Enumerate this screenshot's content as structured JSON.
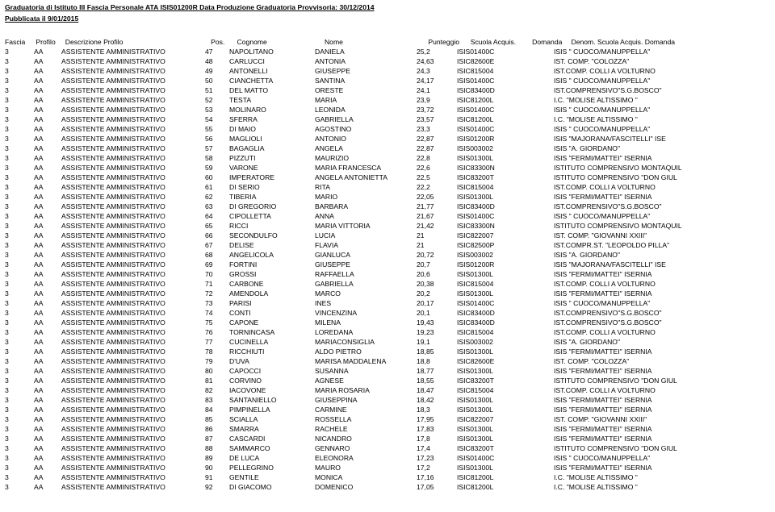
{
  "title": "Graduatoria di Istituto III Fascia Personale ATA ISIS01200R Data Produzione Graduatoria Provvisoria: 30/12/2014",
  "subtitle": "Pubblicata il 9/01/2015",
  "columns": {
    "fascia": "Fascia",
    "profilo": "Profilo",
    "descrizione": "Descrizione Profilo",
    "pos": "Pos.",
    "cognome": "Cognome",
    "nome": "Nome",
    "punteggio": "Punteggio",
    "scuola": "Scuola Acquis.",
    "domanda": "Domanda",
    "denom": "Denom. Scuola Acquis. Domanda"
  },
  "rows": [
    {
      "fascia": "3",
      "profilo": "AA",
      "desc": "ASSISTENTE AMMINISTRATIVO",
      "pos": "47",
      "cognome": "NAPOLITANO",
      "nome": "DANIELA",
      "punt": "25,2",
      "scuola": "ISIS01400C",
      "denom": "ISIS \" CUOCO/MANUPPELLA\""
    },
    {
      "fascia": "3",
      "profilo": "AA",
      "desc": "ASSISTENTE AMMINISTRATIVO",
      "pos": "48",
      "cognome": "CARLUCCI",
      "nome": "ANTONIA",
      "punt": "24,63",
      "scuola": "ISIC82600E",
      "denom": "IST. COMP. \"COLOZZA\""
    },
    {
      "fascia": "3",
      "profilo": "AA",
      "desc": "ASSISTENTE AMMINISTRATIVO",
      "pos": "49",
      "cognome": "ANTONELLI",
      "nome": "GIUSEPPE",
      "punt": "24,3",
      "scuola": "ISIC815004",
      "denom": "IST.COMP. COLLI A VOLTURNO"
    },
    {
      "fascia": "3",
      "profilo": "AA",
      "desc": "ASSISTENTE AMMINISTRATIVO",
      "pos": "50",
      "cognome": "CIANCHETTA",
      "nome": "SANTINA",
      "punt": "24,17",
      "scuola": "ISIS01400C",
      "denom": "ISIS \" CUOCO/MANUPPELLA\""
    },
    {
      "fascia": "3",
      "profilo": "AA",
      "desc": "ASSISTENTE AMMINISTRATIVO",
      "pos": "51",
      "cognome": "DEL MATTO",
      "nome": "ORESTE",
      "punt": "24,1",
      "scuola": "ISIC83400D",
      "denom": "IST.COMPRENSIVO\"S.G.BOSCO\""
    },
    {
      "fascia": "3",
      "profilo": "AA",
      "desc": "ASSISTENTE AMMINISTRATIVO",
      "pos": "52",
      "cognome": "TESTA",
      "nome": "MARIA",
      "punt": "23,9",
      "scuola": "ISIC81200L",
      "denom": "I.C. \"MOLISE ALTISSIMO \""
    },
    {
      "fascia": "3",
      "profilo": "AA",
      "desc": "ASSISTENTE AMMINISTRATIVO",
      "pos": "53",
      "cognome": "MOLINARO",
      "nome": "LEONIDA",
      "punt": "23,72",
      "scuola": "ISIS01400C",
      "denom": "ISIS \" CUOCO/MANUPPELLA\""
    },
    {
      "fascia": "3",
      "profilo": "AA",
      "desc": "ASSISTENTE AMMINISTRATIVO",
      "pos": "54",
      "cognome": "SFERRA",
      "nome": "GABRIELLA",
      "punt": "23,57",
      "scuola": "ISIC81200L",
      "denom": "I.C. \"MOLISE ALTISSIMO \""
    },
    {
      "fascia": "3",
      "profilo": "AA",
      "desc": "ASSISTENTE AMMINISTRATIVO",
      "pos": "55",
      "cognome": "DI MAIO",
      "nome": "AGOSTINO",
      "punt": "23,3",
      "scuola": "ISIS01400C",
      "denom": "ISIS \" CUOCO/MANUPPELLA\""
    },
    {
      "fascia": "3",
      "profilo": "AA",
      "desc": "ASSISTENTE AMMINISTRATIVO",
      "pos": "56",
      "cognome": "MAGLIOLI",
      "nome": "ANTONIO",
      "punt": "22,87",
      "scuola": "ISIS01200R",
      "denom": "ISIS \"MAJORANA/FASCITELLI\" ISE"
    },
    {
      "fascia": "3",
      "profilo": "AA",
      "desc": "ASSISTENTE AMMINISTRATIVO",
      "pos": "57",
      "cognome": "BAGAGLIA",
      "nome": "ANGELA",
      "punt": "22,87",
      "scuola": "ISIS003002",
      "denom": "ISIS  \"A. GIORDANO\""
    },
    {
      "fascia": "3",
      "profilo": "AA",
      "desc": "ASSISTENTE AMMINISTRATIVO",
      "pos": "58",
      "cognome": "PIZZUTI",
      "nome": "MAURIZIO",
      "punt": "22,8",
      "scuola": "ISIS01300L",
      "denom": "ISIS \"FERMI/MATTEI\" ISERNIA"
    },
    {
      "fascia": "3",
      "profilo": "AA",
      "desc": "ASSISTENTE AMMINISTRATIVO",
      "pos": "59",
      "cognome": "VARONE",
      "nome": "MARIA FRANCESCA",
      "punt": "22,6",
      "scuola": "ISIC83300N",
      "denom": "ISTITUTO COMPRENSIVO MONTAQUIL"
    },
    {
      "fascia": "3",
      "profilo": "AA",
      "desc": "ASSISTENTE AMMINISTRATIVO",
      "pos": "60",
      "cognome": "IMPERATORE",
      "nome": "ANGELA ANTONIETTA",
      "punt": "22,5",
      "scuola": "ISIC83200T",
      "denom": "ISTITUTO COMPRENSIVO \"DON GIUL"
    },
    {
      "fascia": "3",
      "profilo": "AA",
      "desc": "ASSISTENTE AMMINISTRATIVO",
      "pos": "61",
      "cognome": "DI SERIO",
      "nome": "RITA",
      "punt": "22,2",
      "scuola": "ISIC815004",
      "denom": "IST.COMP. COLLI A VOLTURNO"
    },
    {
      "fascia": "3",
      "profilo": "AA",
      "desc": "ASSISTENTE AMMINISTRATIVO",
      "pos": "62",
      "cognome": "TIBERIA",
      "nome": "MARIO",
      "punt": "22,05",
      "scuola": "ISIS01300L",
      "denom": "ISIS \"FERMI/MATTEI\" ISERNIA"
    },
    {
      "fascia": "3",
      "profilo": "AA",
      "desc": "ASSISTENTE AMMINISTRATIVO",
      "pos": "63",
      "cognome": "DI GREGORIO",
      "nome": "BARBARA",
      "punt": "21,77",
      "scuola": "ISIC83400D",
      "denom": "IST.COMPRENSIVO\"S.G.BOSCO\""
    },
    {
      "fascia": "3",
      "profilo": "AA",
      "desc": "ASSISTENTE AMMINISTRATIVO",
      "pos": "64",
      "cognome": "CIPOLLETTA",
      "nome": "ANNA",
      "punt": "21,67",
      "scuola": "ISIS01400C",
      "denom": "ISIS \" CUOCO/MANUPPELLA\""
    },
    {
      "fascia": "3",
      "profilo": "AA",
      "desc": "ASSISTENTE AMMINISTRATIVO",
      "pos": "65",
      "cognome": "RICCI",
      "nome": "MARIA VITTORIA",
      "punt": "21,42",
      "scuola": "ISIC83300N",
      "denom": "ISTITUTO COMPRENSIVO MONTAQUIL"
    },
    {
      "fascia": "3",
      "profilo": "AA",
      "desc": "ASSISTENTE AMMINISTRATIVO",
      "pos": "66",
      "cognome": "SECONDULFO",
      "nome": "LUCIA",
      "punt": "21",
      "scuola": "ISIC822007",
      "denom": "IST. COMP. \"GIOVANNI XXIII\""
    },
    {
      "fascia": "3",
      "profilo": "AA",
      "desc": "ASSISTENTE AMMINISTRATIVO",
      "pos": "67",
      "cognome": "DELISE",
      "nome": "FLAVIA",
      "punt": "21",
      "scuola": "ISIC82500P",
      "denom": "IST.COMPR.ST. \"LEOPOLDO PILLA\""
    },
    {
      "fascia": "3",
      "profilo": "AA",
      "desc": "ASSISTENTE AMMINISTRATIVO",
      "pos": "68",
      "cognome": "ANGELICOLA",
      "nome": "GIANLUCA",
      "punt": "20,72",
      "scuola": "ISIS003002",
      "denom": "ISIS  \"A. GIORDANO\""
    },
    {
      "fascia": "3",
      "profilo": "AA",
      "desc": "ASSISTENTE AMMINISTRATIVO",
      "pos": "69",
      "cognome": "FORTINI",
      "nome": "GIUSEPPE",
      "punt": "20,7",
      "scuola": "ISIS01200R",
      "denom": "ISIS \"MAJORANA/FASCITELLI\" ISE"
    },
    {
      "fascia": "3",
      "profilo": "AA",
      "desc": "ASSISTENTE AMMINISTRATIVO",
      "pos": "70",
      "cognome": "GROSSI",
      "nome": "RAFFAELLA",
      "punt": "20,6",
      "scuola": "ISIS01300L",
      "denom": "ISIS \"FERMI/MATTEI\" ISERNIA"
    },
    {
      "fascia": "3",
      "profilo": "AA",
      "desc": "ASSISTENTE AMMINISTRATIVO",
      "pos": "71",
      "cognome": "CARBONE",
      "nome": "GABRIELLA",
      "punt": "20,38",
      "scuola": "ISIC815004",
      "denom": "IST.COMP. COLLI A VOLTURNO"
    },
    {
      "fascia": "3",
      "profilo": "AA",
      "desc": "ASSISTENTE AMMINISTRATIVO",
      "pos": "72",
      "cognome": "AMENDOLA",
      "nome": "MARCO",
      "punt": "20,2",
      "scuola": "ISIS01300L",
      "denom": "ISIS \"FERMI/MATTEI\" ISERNIA"
    },
    {
      "fascia": "3",
      "profilo": "AA",
      "desc": "ASSISTENTE AMMINISTRATIVO",
      "pos": "73",
      "cognome": "PARISI",
      "nome": "INES",
      "punt": "20,17",
      "scuola": "ISIS01400C",
      "denom": "ISIS \" CUOCO/MANUPPELLA\""
    },
    {
      "fascia": "3",
      "profilo": "AA",
      "desc": "ASSISTENTE AMMINISTRATIVO",
      "pos": "74",
      "cognome": "CONTI",
      "nome": "VINCENZINA",
      "punt": "20,1",
      "scuola": "ISIC83400D",
      "denom": "IST.COMPRENSIVO\"S.G.BOSCO\""
    },
    {
      "fascia": "3",
      "profilo": "AA",
      "desc": "ASSISTENTE AMMINISTRATIVO",
      "pos": "75",
      "cognome": "CAPONE",
      "nome": "MILENA",
      "punt": "19,43",
      "scuola": "ISIC83400D",
      "denom": "IST.COMPRENSIVO\"S.G.BOSCO\""
    },
    {
      "fascia": "3",
      "profilo": "AA",
      "desc": "ASSISTENTE AMMINISTRATIVO",
      "pos": "76",
      "cognome": "TORNINCASA",
      "nome": "LOREDANA",
      "punt": "19,23",
      "scuola": "ISIC815004",
      "denom": "IST.COMP. COLLI A VOLTURNO"
    },
    {
      "fascia": "3",
      "profilo": "AA",
      "desc": "ASSISTENTE AMMINISTRATIVO",
      "pos": "77",
      "cognome": "CUCINELLA",
      "nome": "MARIACONSIGLIA",
      "punt": "19,1",
      "scuola": "ISIS003002",
      "denom": "ISIS  \"A. GIORDANO\""
    },
    {
      "fascia": "3",
      "profilo": "AA",
      "desc": "ASSISTENTE AMMINISTRATIVO",
      "pos": "78",
      "cognome": "RICCHIUTI",
      "nome": "ALDO PIETRO",
      "punt": "18,85",
      "scuola": "ISIS01300L",
      "denom": "ISIS \"FERMI/MATTEI\" ISERNIA"
    },
    {
      "fascia": "3",
      "profilo": "AA",
      "desc": "ASSISTENTE AMMINISTRATIVO",
      "pos": "79",
      "cognome": "D'UVA",
      "nome": "MARISA MADDALENA",
      "punt": "18,8",
      "scuola": "ISIC82600E",
      "denom": "IST. COMP. \"COLOZZA\""
    },
    {
      "fascia": "3",
      "profilo": "AA",
      "desc": "ASSISTENTE AMMINISTRATIVO",
      "pos": "80",
      "cognome": "CAPOCCI",
      "nome": "SUSANNA",
      "punt": "18,77",
      "scuola": "ISIS01300L",
      "denom": "ISIS \"FERMI/MATTEI\" ISERNIA"
    },
    {
      "fascia": "3",
      "profilo": "AA",
      "desc": "ASSISTENTE AMMINISTRATIVO",
      "pos": "81",
      "cognome": "CORVINO",
      "nome": "AGNESE",
      "punt": "18,55",
      "scuola": "ISIC83200T",
      "denom": "ISTITUTO COMPRENSIVO \"DON GIUL"
    },
    {
      "fascia": "3",
      "profilo": "AA",
      "desc": "ASSISTENTE AMMINISTRATIVO",
      "pos": "82",
      "cognome": "IACOVONE",
      "nome": "MARIA ROSARIA",
      "punt": "18,47",
      "scuola": "ISIC815004",
      "denom": "IST.COMP. COLLI A VOLTURNO"
    },
    {
      "fascia": "3",
      "profilo": "AA",
      "desc": "ASSISTENTE AMMINISTRATIVO",
      "pos": "83",
      "cognome": "SANTANIELLO",
      "nome": "GIUSEPPINA",
      "punt": "18,42",
      "scuola": "ISIS01300L",
      "denom": "ISIS \"FERMI/MATTEI\" ISERNIA"
    },
    {
      "fascia": "3",
      "profilo": "AA",
      "desc": "ASSISTENTE AMMINISTRATIVO",
      "pos": "84",
      "cognome": "PIMPINELLA",
      "nome": "CARMINE",
      "punt": "18,3",
      "scuola": "ISIS01300L",
      "denom": "ISIS \"FERMI/MATTEI\" ISERNIA"
    },
    {
      "fascia": "3",
      "profilo": "AA",
      "desc": "ASSISTENTE AMMINISTRATIVO",
      "pos": "85",
      "cognome": "SCIALLA",
      "nome": "ROSSELLA",
      "punt": "17,95",
      "scuola": "ISIC822007",
      "denom": "IST. COMP. \"GIOVANNI XXIII\""
    },
    {
      "fascia": "3",
      "profilo": "AA",
      "desc": "ASSISTENTE AMMINISTRATIVO",
      "pos": "86",
      "cognome": "SMARRA",
      "nome": "RACHELE",
      "punt": "17,83",
      "scuola": "ISIS01300L",
      "denom": "ISIS \"FERMI/MATTEI\" ISERNIA"
    },
    {
      "fascia": "3",
      "profilo": "AA",
      "desc": "ASSISTENTE AMMINISTRATIVO",
      "pos": "87",
      "cognome": "CASCARDI",
      "nome": "NICANDRO",
      "punt": "17,8",
      "scuola": "ISIS01300L",
      "denom": "ISIS \"FERMI/MATTEI\" ISERNIA"
    },
    {
      "fascia": "3",
      "profilo": "AA",
      "desc": "ASSISTENTE AMMINISTRATIVO",
      "pos": "88",
      "cognome": "SAMMARCO",
      "nome": "GENNARO",
      "punt": "17,4",
      "scuola": "ISIC83200T",
      "denom": "ISTITUTO COMPRENSIVO \"DON GIUL"
    },
    {
      "fascia": "3",
      "profilo": "AA",
      "desc": "ASSISTENTE AMMINISTRATIVO",
      "pos": "89",
      "cognome": "DE LUCA",
      "nome": "ELEONORA",
      "punt": "17,23",
      "scuola": "ISIS01400C",
      "denom": "ISIS \" CUOCO/MANUPPELLA\""
    },
    {
      "fascia": "3",
      "profilo": "AA",
      "desc": "ASSISTENTE AMMINISTRATIVO",
      "pos": "90",
      "cognome": "PELLEGRINO",
      "nome": "MAURO",
      "punt": "17,2",
      "scuola": "ISIS01300L",
      "denom": "ISIS \"FERMI/MATTEI\" ISERNIA"
    },
    {
      "fascia": "3",
      "profilo": "AA",
      "desc": "ASSISTENTE AMMINISTRATIVO",
      "pos": "91",
      "cognome": "GENTILE",
      "nome": "MONICA",
      "punt": "17,16",
      "scuola": "ISIC81200L",
      "denom": "I.C. \"MOLISE ALTISSIMO \""
    },
    {
      "fascia": "3",
      "profilo": "AA",
      "desc": "ASSISTENTE AMMINISTRATIVO",
      "pos": "92",
      "cognome": "DI GIACOMO",
      "nome": "DOMENICO",
      "punt": "17,05",
      "scuola": "ISIC81200L",
      "denom": "I.C. \"MOLISE ALTISSIMO \""
    }
  ]
}
